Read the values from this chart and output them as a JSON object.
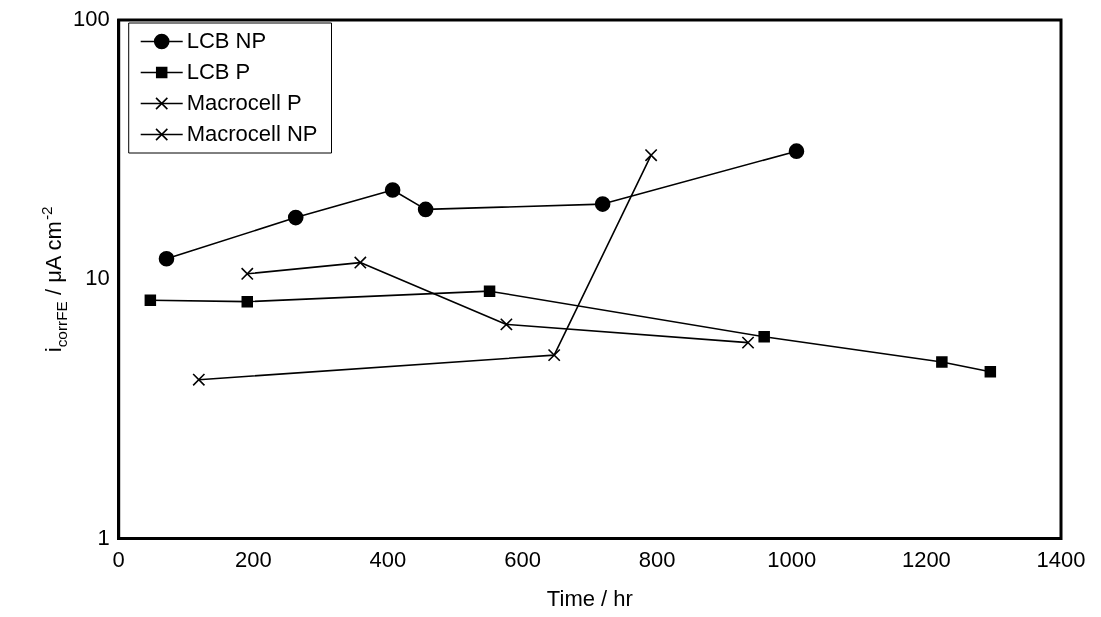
{
  "chart_data": {
    "type": "line",
    "xlabel": "Time / hr",
    "ylabel": "i$_{corrFE}$ / μA cm$^{-2}$",
    "log": "y",
    "xlim": [
      0,
      1400
    ],
    "xticks": [
      0,
      200,
      400,
      600,
      800,
      1000,
      1200,
      1400
    ],
    "ylim": [
      1,
      100
    ],
    "yticks": [
      1,
      10,
      100
    ],
    "grid": false,
    "legend": "top left",
    "line_style": "solid",
    "series": [
      {
        "name": "LCB NP",
        "color": "#000000",
        "marker": "circle",
        "x": [
          71,
          263,
          407,
          456,
          719,
          1007
        ],
        "values": [
          12.0,
          17.3,
          22.1,
          18.6,
          19.5,
          31.2
        ]
      },
      {
        "name": "LCB P",
        "color": "#000000",
        "marker": "square",
        "x": [
          47,
          191,
          551,
          959,
          1223,
          1295
        ],
        "values": [
          8.3,
          8.2,
          9.0,
          6.0,
          4.8,
          4.4
        ]
      },
      {
        "name": "Macrocell P",
        "color": "#000000",
        "marker": "cross",
        "x": [
          191,
          359,
          576,
          935
        ],
        "values": [
          10.5,
          11.6,
          6.7,
          5.7
        ]
      },
      {
        "name": "Macrocell NP",
        "color": "#000000",
        "marker": "cross",
        "x": [
          119,
          647,
          791
        ],
        "values": [
          4.1,
          5.1,
          30.1
        ]
      }
    ]
  }
}
